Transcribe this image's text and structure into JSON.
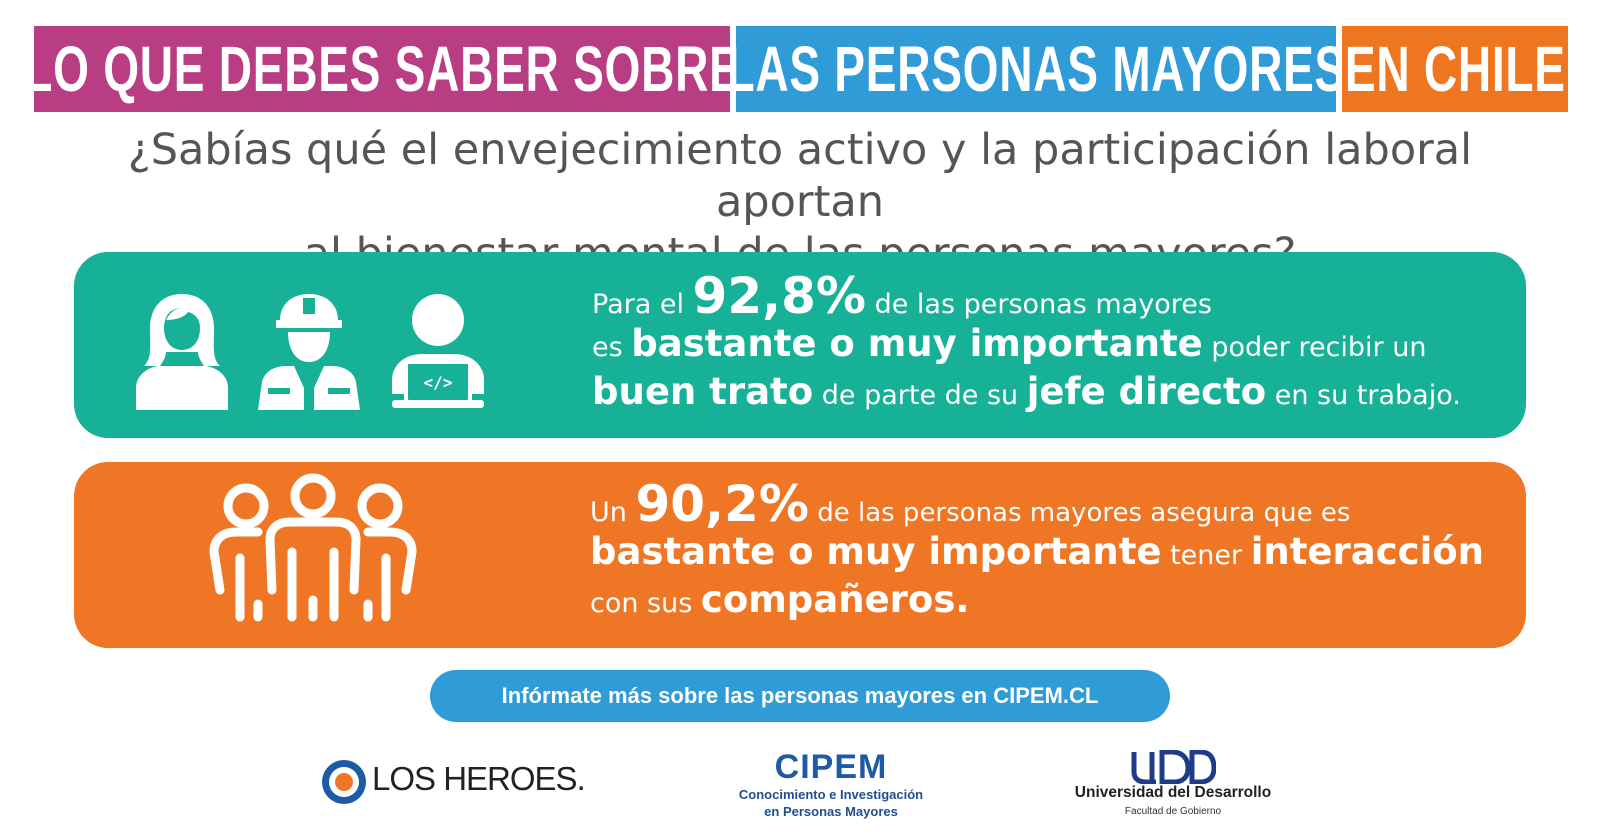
{
  "banner": {
    "part1": "LO QUE DEBES SABER SOBRE",
    "part2": "LAS PERSONAS MAYORES",
    "part3": "EN CHILE",
    "colors": {
      "magenta": "#b83d83",
      "blue": "#2f9bd7",
      "orange": "#ee7620"
    }
  },
  "subtitle": {
    "line1": "¿Sabías qué el envejecimiento activo y la participación laboral aportan",
    "line2": "al bienestar mental de las personas mayores?"
  },
  "stat1": {
    "color": "#17b197",
    "icons": [
      "woman-icon",
      "worker-icon",
      "programmer-icon"
    ],
    "t1": "Para el ",
    "value": "92,8%",
    "t2": " de las personas mayores",
    "t3": "es ",
    "b1": "bastante o muy importante",
    "t4": " poder recibir un",
    "b2": "buen trato",
    "t5": " de parte de su ",
    "b3": "jefe directo",
    "t6": " en su trabajo."
  },
  "stat2": {
    "color": "#ee7624",
    "icons": [
      "group-icon"
    ],
    "t1": "Un ",
    "value": "90,2%",
    "t2": " de las personas mayores asegura que es",
    "b1": "bastante o muy importante",
    "t3": " tener ",
    "b2": "interacción",
    "t4": "con sus ",
    "b3": "compañeros."
  },
  "cta": {
    "label": "Infórmate más sobre las personas mayores en CIPEM.CL"
  },
  "logos": {
    "losheroes": "LOS HEROES.",
    "cipem_title": "CIPEM",
    "cipem_line1": "Conocimiento e Investigación",
    "cipem_line2": "en Personas Mayores",
    "udd_name": "Universidad del Desarrollo",
    "udd_faculty": "Facultad de Gobierno"
  }
}
